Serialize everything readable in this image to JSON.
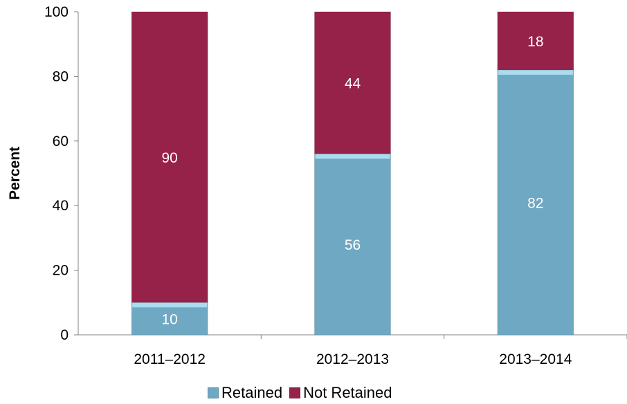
{
  "chart_data": {
    "type": "bar",
    "stacked": true,
    "categories": [
      "2011–2012",
      "2012–2013",
      "2013–2014"
    ],
    "series": [
      {
        "name": "Retained",
        "values": [
          10,
          56,
          82
        ],
        "color": "#6fa8c3"
      },
      {
        "name": "Not Retained",
        "values": [
          90,
          44,
          18
        ],
        "color": "#962249"
      }
    ],
    "ylabel": "Percent",
    "ylim": [
      0,
      100
    ],
    "yticks": [
      0,
      20,
      40,
      60,
      80,
      100
    ],
    "grid": false,
    "legend_position": "bottom"
  }
}
